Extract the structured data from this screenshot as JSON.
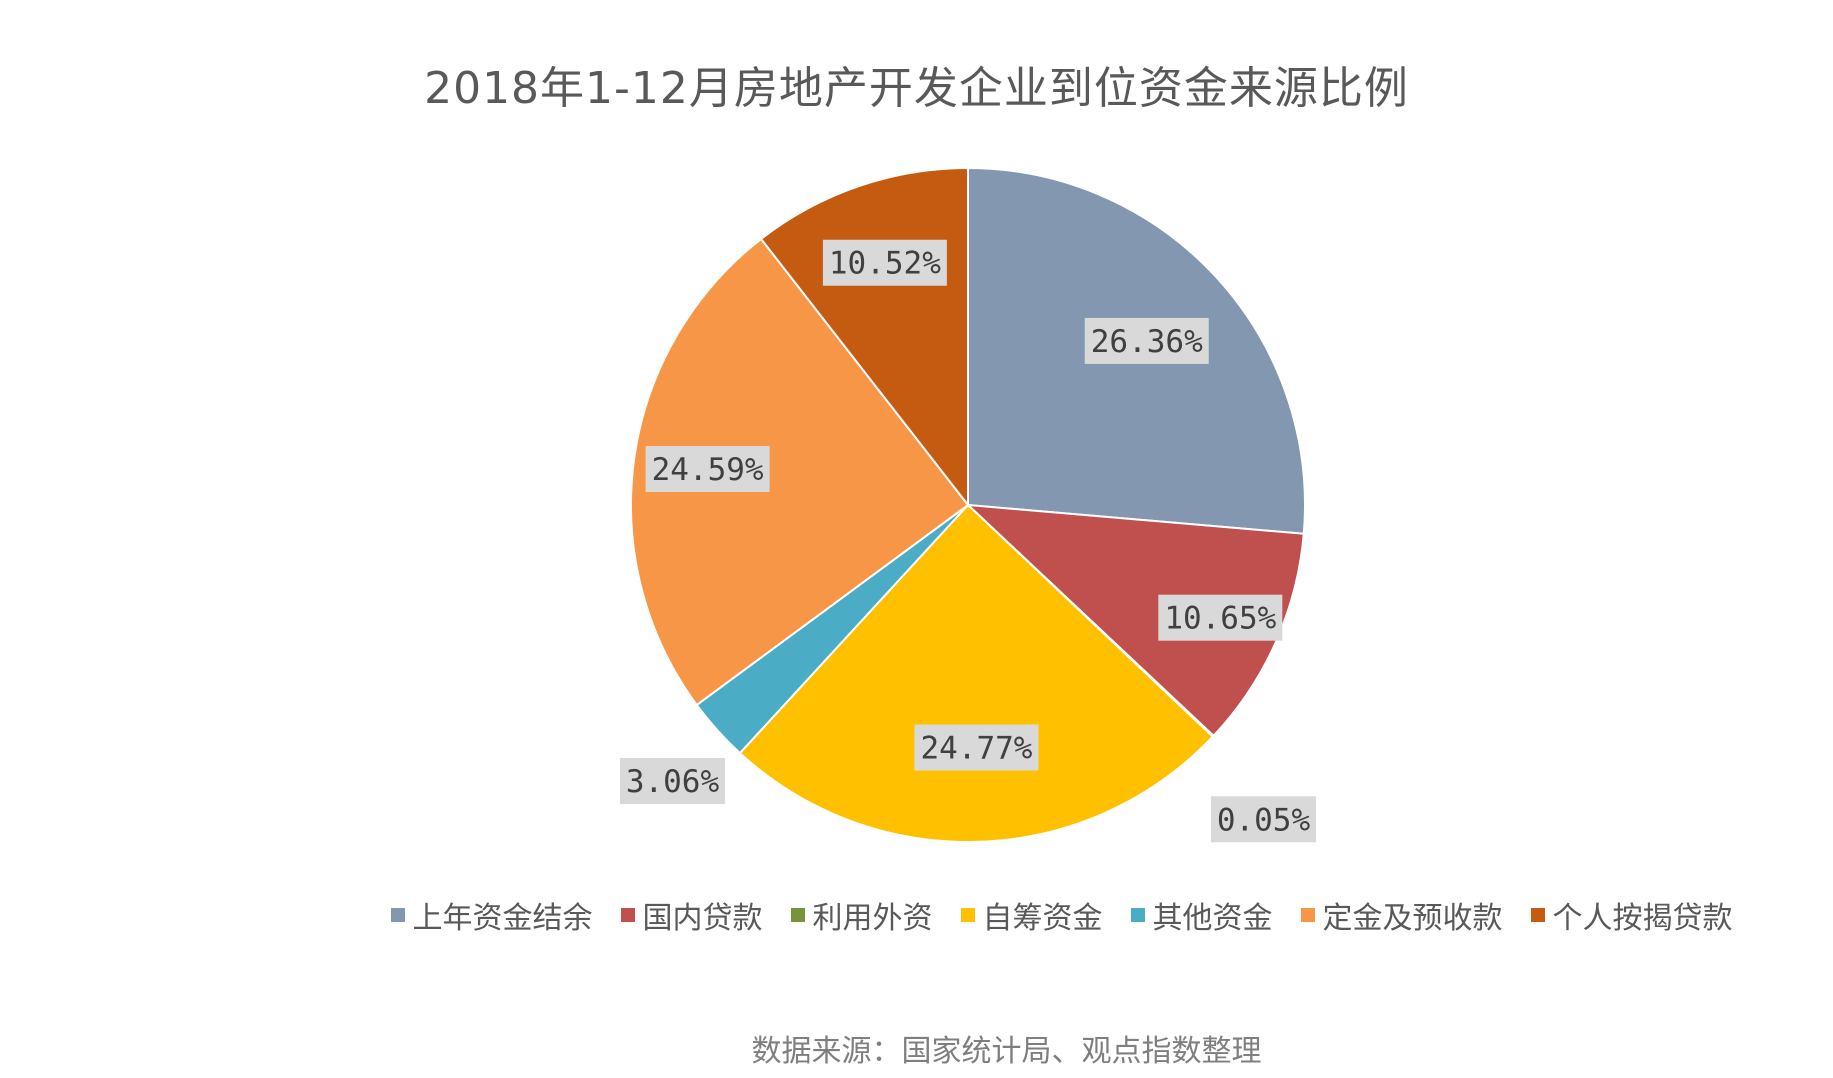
{
  "chart_data": {
    "type": "pie",
    "title": "2018年1-12月房地产开发企业到位资金来源比例",
    "categories": [
      "上年资金结余",
      "国内贷款",
      "利用外资",
      "自筹资金",
      "其他资金",
      "定金及预收款",
      "个人按揭贷款"
    ],
    "values": [
      26.36,
      10.65,
      0.05,
      24.77,
      3.06,
      24.59,
      10.52
    ],
    "data_labels": [
      "26.36%",
      "10.65%",
      "0.05%",
      "24.77%",
      "3.06%",
      "24.59%",
      "10.52%"
    ],
    "colors": [
      "#8497b0",
      "#c0504d",
      "#77933c",
      "#ffc000",
      "#4bacc6",
      "#f79646",
      "#c55a11"
    ],
    "start_angle": "12 o'clock",
    "direction": "clockwise",
    "legend": "bottom"
  },
  "source_note": "数据来源：国家统计局、观点指数整理"
}
